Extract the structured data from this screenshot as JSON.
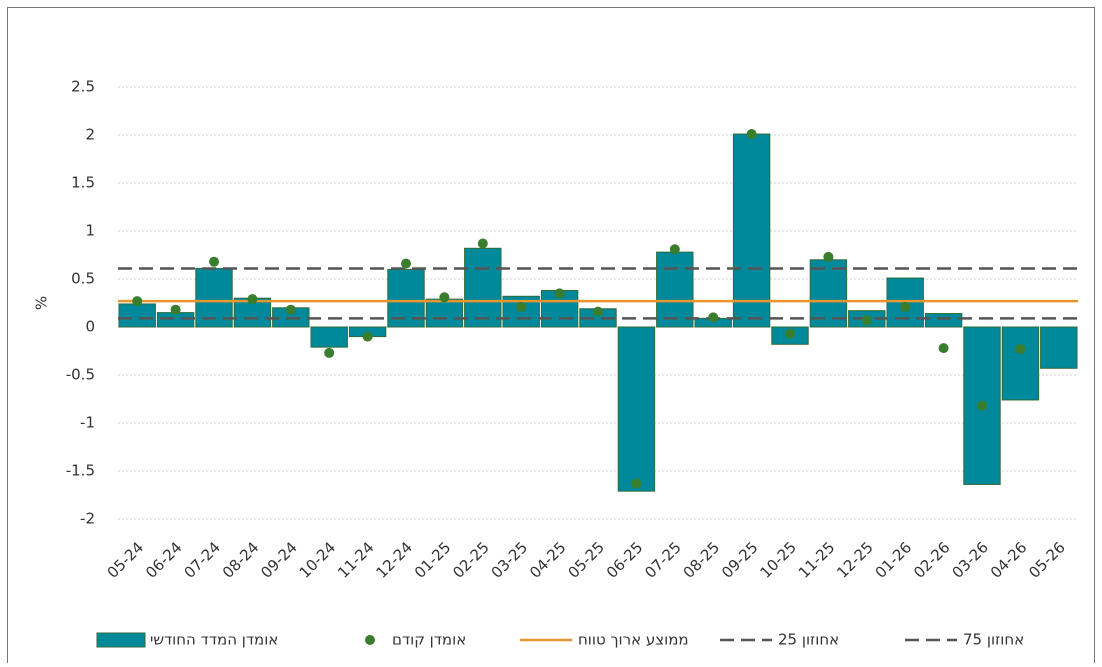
{
  "chart_data": {
    "type": "bar",
    "categories": [
      "05-24",
      "06-24",
      "07-24",
      "08-24",
      "09-24",
      "10-24",
      "11-24",
      "12-24",
      "01-25",
      "02-25",
      "03-25",
      "04-25",
      "05-25",
      "06-25",
      "07-25",
      "08-25",
      "09-25",
      "10-25",
      "11-25",
      "12-25",
      "01-26",
      "02-26",
      "03-26",
      "04-26",
      "05-26"
    ],
    "series": [
      {
        "name": "אומדן המדד החודשי",
        "color": "#00899b",
        "values": [
          0.24,
          0.15,
          0.61,
          0.3,
          0.2,
          -0.21,
          -0.1,
          0.6,
          0.29,
          0.82,
          0.32,
          0.38,
          0.19,
          -1.71,
          0.78,
          0.09,
          2.01,
          -0.18,
          0.7,
          0.17,
          0.51,
          0.14,
          -1.64,
          -0.76,
          -0.43
        ]
      },
      {
        "name": "אומדן קודם",
        "color": "#3a7d2c",
        "values": [
          0.27,
          0.18,
          0.68,
          0.29,
          0.18,
          -0.27,
          -0.1,
          0.66,
          0.31,
          0.87,
          0.21,
          0.35,
          0.16,
          -1.63,
          0.81,
          0.1,
          2.01,
          -0.07,
          0.73,
          0.07,
          0.21,
          -0.22,
          -0.82,
          -0.23,
          null
        ]
      }
    ],
    "lines": [
      {
        "name": "ממוצע ארוך טווח",
        "value": 0.27,
        "color": "#e8952f",
        "dashed": false
      },
      {
        "name": "אחוזון 25",
        "value": 0.09,
        "color": "#555555",
        "dashed": true
      },
      {
        "name": "אחוזון 75",
        "value": 0.61,
        "color": "#555555",
        "dashed": true
      }
    ],
    "ylabel": "%",
    "ylim": [
      -2.2,
      2.6
    ],
    "yticks": [
      -2,
      -1.5,
      -1,
      -0.5,
      0,
      0.5,
      1,
      1.5,
      2,
      2.5
    ],
    "grid": true
  }
}
